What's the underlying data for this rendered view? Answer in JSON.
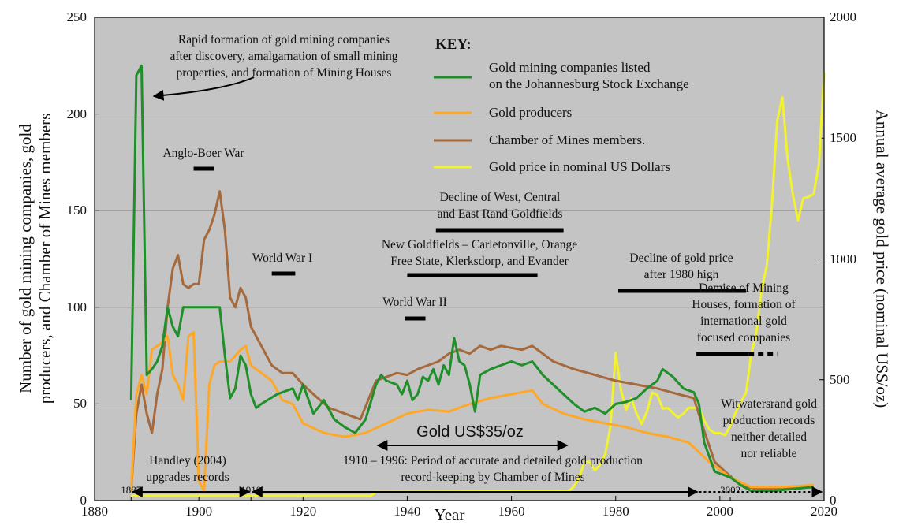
{
  "chart_data": {
    "type": "line",
    "x_label": "Year",
    "y_label": "Number of gold mining companies, gold\nproducers, and Chamber of Mines members",
    "y2_label": "Annual average gold price (nominal US$/oz)",
    "xlim": [
      1880,
      2020
    ],
    "xticks": [
      1880,
      1900,
      1920,
      1940,
      1960,
      1980,
      2000,
      2020
    ],
    "extra_xticks": [
      1887,
      1910,
      2002
    ],
    "ylim": [
      0,
      250
    ],
    "yticks": [
      0,
      50,
      100,
      150,
      200,
      250
    ],
    "y2lim": [
      0,
      2000
    ],
    "y2ticks": [
      0,
      500,
      1000,
      1500,
      2000
    ],
    "grid": true,
    "legend_title": "KEY:",
    "series": [
      {
        "name": "Gold mining companies listed\non the Johannesburg Stock Exchange",
        "color": "#1f8f2a",
        "x": [
          1887,
          1888,
          1889,
          1890,
          1891,
          1892,
          1893,
          1894,
          1895,
          1896,
          1897,
          1898,
          1899,
          1900,
          1901,
          1902,
          1903,
          1904,
          1905,
          1906,
          1907,
          1908,
          1909,
          1910,
          1911,
          1912,
          1915,
          1918,
          1919,
          1920,
          1922,
          1924,
          1926,
          1928,
          1930,
          1932,
          1934,
          1935,
          1936,
          1938,
          1939,
          1940,
          1941,
          1942,
          1943,
          1944,
          1945,
          1946,
          1947,
          1948,
          1949,
          1950,
          1951,
          1952,
          1953,
          1954,
          1956,
          1958,
          1960,
          1962,
          1964,
          1966,
          1968,
          1970,
          1972,
          1974,
          1976,
          1978,
          1980,
          1982,
          1984,
          1986,
          1988,
          1989,
          1991,
          1993,
          1995,
          1996,
          1997,
          1999,
          2002,
          2004,
          2006,
          2010,
          2014,
          2018
        ],
        "values": [
          52,
          220,
          225,
          65,
          68,
          72,
          80,
          100,
          90,
          85,
          100,
          100,
          100,
          100,
          100,
          100,
          100,
          100,
          75,
          53,
          58,
          75,
          70,
          55,
          48,
          50,
          55,
          58,
          52,
          60,
          45,
          52,
          42,
          38,
          35,
          42,
          60,
          65,
          62,
          60,
          55,
          62,
          52,
          55,
          64,
          62,
          68,
          60,
          70,
          65,
          84,
          72,
          70,
          60,
          46,
          65,
          68,
          70,
          72,
          70,
          72,
          65,
          60,
          55,
          50,
          46,
          48,
          45,
          50,
          51,
          53,
          58,
          62,
          68,
          64,
          58,
          56,
          50,
          30,
          15,
          12,
          8,
          5,
          5,
          6,
          7
        ]
      },
      {
        "name": "Gold producers",
        "color": "#ffa726",
        "x": [
          1887,
          1888,
          1889,
          1890,
          1891,
          1892,
          1893,
          1894,
          1895,
          1896,
          1897,
          1898,
          1899,
          1900,
          1901,
          1902,
          1903,
          1904,
          1905,
          1906,
          1907,
          1908,
          1909,
          1910,
          1912,
          1914,
          1916,
          1918,
          1920,
          1924,
          1928,
          1932,
          1936,
          1940,
          1944,
          1948,
          1952,
          1956,
          1960,
          1964,
          1966,
          1970,
          1974,
          1978,
          1982,
          1986,
          1990,
          1994,
          1998,
          2002,
          2006,
          2012,
          2018
        ],
        "values": [
          5,
          55,
          65,
          55,
          78,
          80,
          82,
          85,
          65,
          60,
          52,
          85,
          87,
          10,
          5,
          60,
          70,
          72,
          72,
          72,
          75,
          78,
          80,
          70,
          66,
          62,
          52,
          50,
          40,
          35,
          33,
          35,
          40,
          45,
          47,
          46,
          50,
          53,
          55,
          57,
          50,
          45,
          42,
          40,
          38,
          35,
          33,
          30,
          20,
          12,
          7,
          7,
          8
        ]
      },
      {
        "name": "Chamber of Mines members.",
        "color": "#a5693c",
        "x": [
          1887,
          1888,
          1889,
          1890,
          1891,
          1892,
          1893,
          1894,
          1895,
          1896,
          1897,
          1898,
          1899,
          1900,
          1901,
          1902,
          1903,
          1904,
          1905,
          1906,
          1907,
          1908,
          1909,
          1910,
          1912,
          1914,
          1916,
          1918,
          1920,
          1922,
          1925,
          1928,
          1931,
          1934,
          1936,
          1938,
          1940,
          1942,
          1944,
          1946,
          1948,
          1950,
          1952,
          1954,
          1956,
          1958,
          1960,
          1962,
          1964,
          1966,
          1968,
          1970,
          1972,
          1976,
          1980,
          1984,
          1988,
          1992,
          1995,
          1997,
          1999,
          2001,
          2004,
          2007,
          2012,
          2018
        ],
        "values": [
          5,
          45,
          60,
          45,
          35,
          55,
          68,
          100,
          120,
          127,
          112,
          110,
          112,
          112,
          135,
          140,
          148,
          160,
          140,
          105,
          100,
          110,
          105,
          90,
          80,
          70,
          66,
          66,
          60,
          55,
          48,
          45,
          42,
          62,
          64,
          66,
          65,
          68,
          70,
          72,
          76,
          78,
          76,
          80,
          78,
          80,
          79,
          78,
          80,
          76,
          72,
          70,
          68,
          65,
          62,
          60,
          58,
          55,
          53,
          36,
          20,
          15,
          8,
          6,
          6,
          7
        ]
      },
      {
        "name": "Gold price in nominal US Dollars",
        "color": "#f2f230",
        "axis": "y2",
        "x": [
          1887,
          1933,
          1934,
          1968,
          1971,
          1972,
          1973,
          1974,
          1975,
          1976,
          1977,
          1978,
          1979,
          1980,
          1981,
          1982,
          1983,
          1984,
          1985,
          1986,
          1987,
          1988,
          1989,
          1990,
          1991,
          1992,
          1993,
          1994,
          1995,
          1996,
          1997,
          1998,
          1999,
          2000,
          2001,
          2002,
          2003,
          2004,
          2005,
          2006,
          2007,
          2008,
          2009,
          2010,
          2011,
          2012,
          2013,
          2014,
          2015,
          2016,
          2017,
          2018,
          2019,
          2020
        ],
        "values": [
          20,
          20,
          35,
          39,
          41,
          58,
          97,
          159,
          161,
          125,
          148,
          193,
          307,
          612,
          460,
          376,
          424,
          361,
          317,
          368,
          447,
          437,
          381,
          383,
          362,
          344,
          360,
          384,
          384,
          388,
          331,
          294,
          279,
          279,
          271,
          310,
          363,
          409,
          444,
          603,
          695,
          872,
          972,
          1225,
          1572,
          1669,
          1411,
          1266,
          1160,
          1251,
          1257,
          1268,
          1393,
          1770
        ]
      }
    ],
    "annotations": [
      {
        "text": "Rapid formation of gold mining companies\nafter discovery, amalgamation of small mining\nproperties, and formation of Mining Houses"
      },
      {
        "text": "Anglo-Boer War",
        "kind": "bar",
        "start": 1899,
        "end": 1903
      },
      {
        "text": "World War I",
        "kind": "bar",
        "start": 1914,
        "end": 1918.5
      },
      {
        "text": "Decline of West, Central\nand East Rand Goldfields",
        "kind": "bar",
        "start": 1945.5,
        "end": 1970
      },
      {
        "text": "New Goldfields – Carletonville, Orange\nFree State, Klerksdorp, and Evander",
        "kind": "bar",
        "start": 1940,
        "end": 1965
      },
      {
        "text": "Decline of gold price\nafter 1980 high",
        "kind": "bar",
        "start": 1980.5,
        "end": 2005
      },
      {
        "text": "World War II",
        "kind": "bar",
        "start": 1939.5,
        "end": 1943.5
      },
      {
        "text": "Demise of Mining\nHouses, formation of\ninternational gold\nfocused companies",
        "kind": "dashed-bar",
        "start": 1995.5,
        "solid_end": 2005.5,
        "end": 2011
      },
      {
        "text": "Gold US$35/oz",
        "kind": "arrow",
        "start": 1934,
        "end": 1971
      },
      {
        "text": "1910 – 1996: Period of accurate and detailed gold production\nrecord-keeping by Chamber of Mines",
        "kind": "arrow",
        "start": 1910,
        "end": 1996
      },
      {
        "text": "Handley (2004)\nupgrades records",
        "kind": "arrow",
        "start": 1887,
        "end": 1910
      },
      {
        "text": "Witwatersrand gold\nproduction records\nneither detailed\nnor reliable",
        "kind": "dotted-arrow",
        "start": 1996,
        "end": 2020
      }
    ]
  }
}
